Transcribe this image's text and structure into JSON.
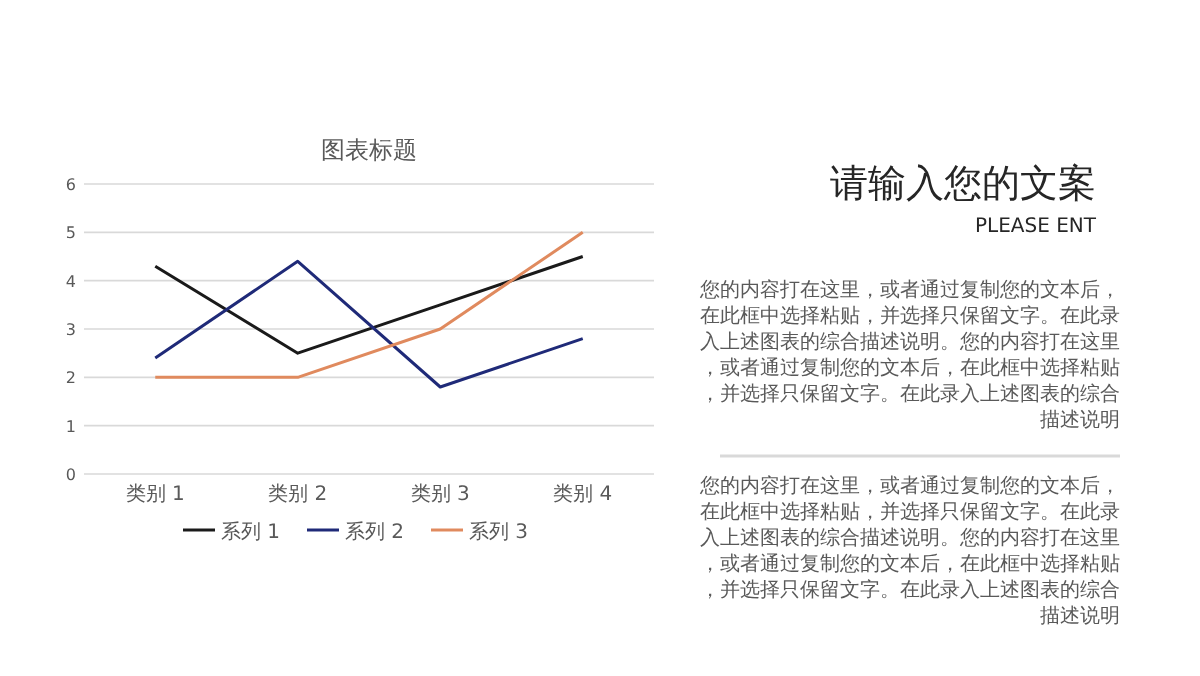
{
  "chart_data": [
    {
      "type": "line",
      "title": "图表标题",
      "categories": [
        "类别 1",
        "类别 2",
        "类别 3",
        "类别 4"
      ],
      "series": [
        {
          "name": "系列 1",
          "color": "#1a1a1a",
          "values": [
            4.3,
            2.5,
            3.5,
            4.5
          ]
        },
        {
          "name": "系列 2",
          "color": "#1f2a78",
          "values": [
            2.4,
            4.4,
            1.8,
            2.8
          ]
        },
        {
          "name": "系列 3",
          "color": "#e08a5e",
          "values": [
            2,
            2,
            3,
            5
          ]
        }
      ],
      "ylim": [
        0,
        6
      ],
      "yticks": [
        0,
        1,
        2,
        3,
        4,
        5,
        6
      ],
      "grid": "y",
      "legend": "bottom",
      "marker": "none",
      "line_style": "solid"
    },
    {
      "type": "other",
      "title": "请输入您的文案",
      "subtitle": "PLEASE ENT",
      "annotations": [
        "您的内容打在这里，或者通过复制您的文本后，在此框中选择粘贴，并选择只保留文字。在此录入上述图表的综合描述说明。您的内容打在这里，或者通过复制您的文本后，在此框中选择粘贴，并选择只保留文字。在此录入上述图表的综合描述说明",
        "您的内容打在这里，或者通过复制您的文本后，在此框中选择粘贴，并选择只保留文字。在此录入上述图表的综合描述说明。您的内容打在这里，或者通过复制您的文本后，在此框中选择粘贴，并选择只保留文字。在此录入上述图表的综合描述说明"
      ]
    }
  ]
}
